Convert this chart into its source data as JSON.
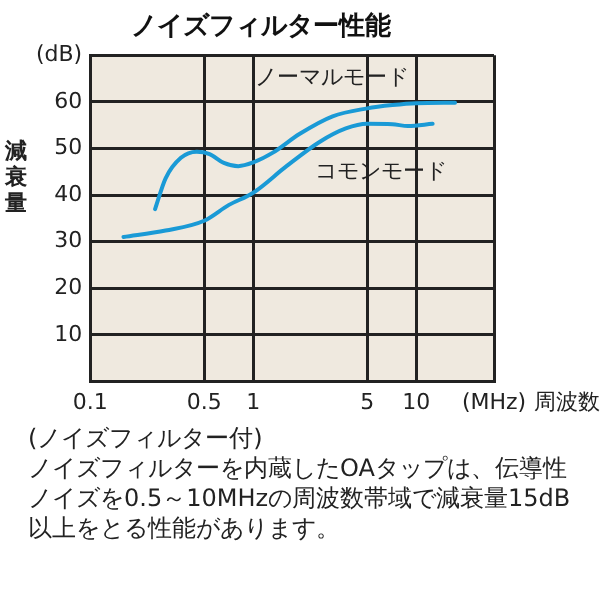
{
  "chart_data": {
    "type": "line",
    "title": "ノイズフィルター性能",
    "xlabel": "周波数",
    "ylabel": "減衰量",
    "log": "x",
    "grid": true,
    "marker": "none",
    "line_style": "solid",
    "xlim": [
      0.1,
      30
    ],
    "xticks": [
      0.1,
      0.5,
      1,
      5,
      10,
      {
        "value": 30,
        "label": "(MHz)"
      }
    ],
    "ylim": [
      0,
      70
    ],
    "yticks": [
      10,
      20,
      30,
      40,
      50,
      60,
      {
        "value": 70,
        "label": "(dB)"
      }
    ],
    "series": [
      {
        "name": "ノーマルモード",
        "color": "#1a9ad6",
        "x": [
          0.25,
          0.29,
          0.36,
          0.45,
          0.54,
          0.66,
          0.81,
          1,
          1.32,
          1.92,
          3.07,
          5,
          7.15,
          10,
          17.3
        ],
        "values": [
          37,
          43.6,
          48,
          49.3,
          48.8,
          46.9,
          46.2,
          47,
          49.1,
          53.1,
          56.9,
          58.6,
          59.3,
          59.7,
          59.8
        ]
      },
      {
        "name": "コモンモード",
        "color": "#1a9ad6",
        "x": [
          0.16,
          0.29,
          0.5,
          0.71,
          1,
          1.6,
          2.55,
          3.7,
          5,
          7.15,
          8.9,
          12.6
        ],
        "values": [
          31,
          32.4,
          34.5,
          37.9,
          40.5,
          46.2,
          51.4,
          54.3,
          55.3,
          55.2,
          54.8,
          55.3
        ]
      }
    ],
    "annotations": [
      "(ノイズフィルター付)",
      "ノイズフィルターを内蔵したOAタップは、伝導性ノイズを0.5～10MHzの周波数帯域で減衰量15dB以上をとる性能があります。"
    ]
  }
}
